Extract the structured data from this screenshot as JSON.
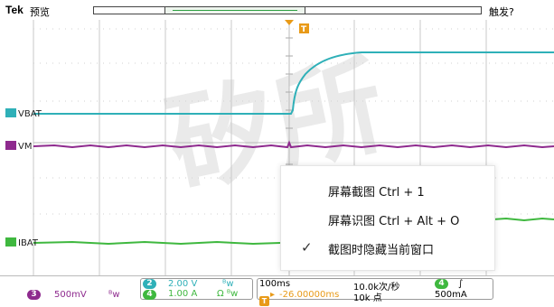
{
  "header": {
    "brand": "Tek",
    "mode": "预览",
    "trigger_status": "触发?"
  },
  "waveform": {
    "trigger_marker": "T",
    "watermark": "矽所"
  },
  "channels": [
    {
      "number": "2",
      "label": "VBAT",
      "color": "#2fb0b8"
    },
    {
      "number": "3",
      "label": "VM",
      "color": "#8e2a8e"
    },
    {
      "number": "4",
      "label": "IBAT",
      "color": "#3fb83f"
    }
  ],
  "context_menu": {
    "items": [
      {
        "label": "屏幕截图 Ctrl + 1",
        "checked": false
      },
      {
        "label": "屏幕识图 Ctrl + Alt + O",
        "checked": false
      },
      {
        "label": "截图时隐藏当前窗口",
        "checked": true
      }
    ]
  },
  "bottom_bar": {
    "ch3": {
      "number": "3",
      "scale": "500mV",
      "coupling": "ᴮw"
    },
    "ch2": {
      "number": "2",
      "scale": "2.00 V",
      "coupling": "ᴮw"
    },
    "ch4": {
      "number": "4",
      "scale": "1.00 A",
      "coupling": "Ω ᴮw"
    },
    "timebase": {
      "scale": "100ms",
      "position": "-26.00000ms",
      "trigger_prefix": "▸"
    },
    "sampling": {
      "rate": "10.0k次/秒",
      "points": "10k 点"
    },
    "trigger": {
      "source": "4",
      "slope": "∫",
      "level": "500mA"
    }
  }
}
